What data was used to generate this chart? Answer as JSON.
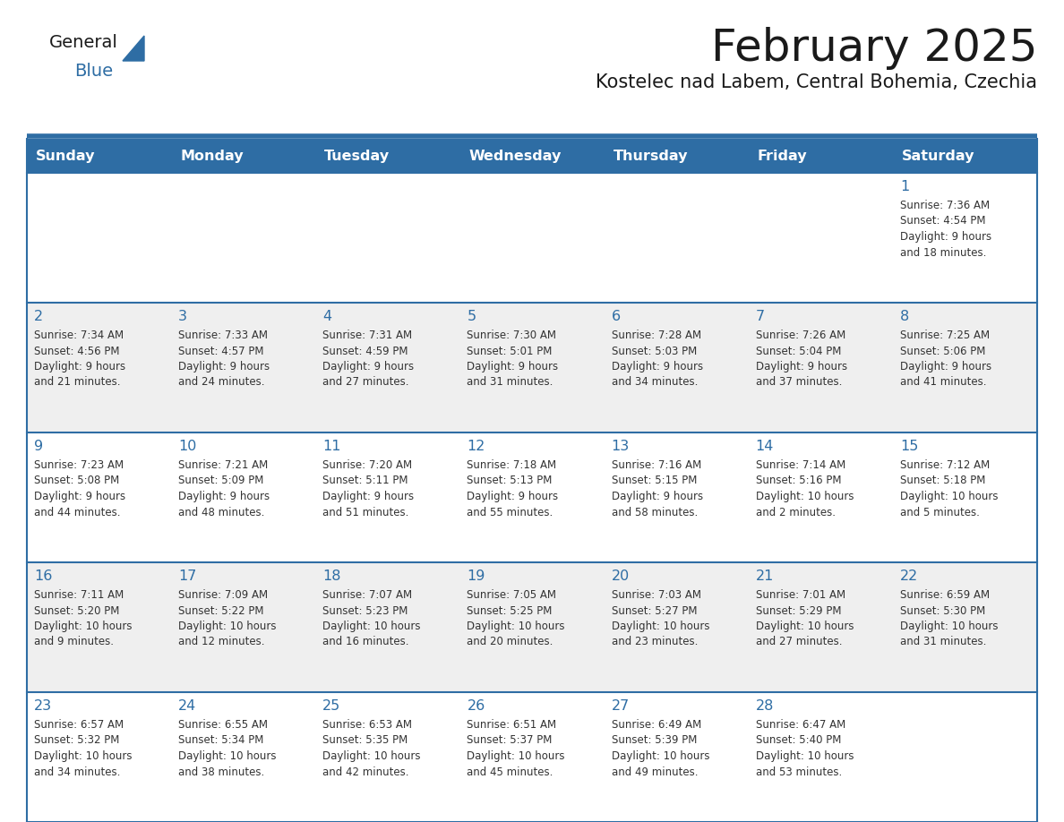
{
  "title": "February 2025",
  "subtitle": "Kostelec nad Labem, Central Bohemia, Czechia",
  "header_bg": "#2E6DA4",
  "header_text": "#FFFFFF",
  "row_bg_colors": [
    "#FFFFFF",
    "#EFEFEF",
    "#FFFFFF",
    "#EFEFEF",
    "#FFFFFF"
  ],
  "cell_border": "#2E6DA4",
  "day_text_color": "#2E6DA4",
  "info_text_color": "#333333",
  "days_of_week": [
    "Sunday",
    "Monday",
    "Tuesday",
    "Wednesday",
    "Thursday",
    "Friday",
    "Saturday"
  ],
  "weeks": [
    [
      {
        "day": "",
        "info": ""
      },
      {
        "day": "",
        "info": ""
      },
      {
        "day": "",
        "info": ""
      },
      {
        "day": "",
        "info": ""
      },
      {
        "day": "",
        "info": ""
      },
      {
        "day": "",
        "info": ""
      },
      {
        "day": "1",
        "info": "Sunrise: 7:36 AM\nSunset: 4:54 PM\nDaylight: 9 hours\nand 18 minutes."
      }
    ],
    [
      {
        "day": "2",
        "info": "Sunrise: 7:34 AM\nSunset: 4:56 PM\nDaylight: 9 hours\nand 21 minutes."
      },
      {
        "day": "3",
        "info": "Sunrise: 7:33 AM\nSunset: 4:57 PM\nDaylight: 9 hours\nand 24 minutes."
      },
      {
        "day": "4",
        "info": "Sunrise: 7:31 AM\nSunset: 4:59 PM\nDaylight: 9 hours\nand 27 minutes."
      },
      {
        "day": "5",
        "info": "Sunrise: 7:30 AM\nSunset: 5:01 PM\nDaylight: 9 hours\nand 31 minutes."
      },
      {
        "day": "6",
        "info": "Sunrise: 7:28 AM\nSunset: 5:03 PM\nDaylight: 9 hours\nand 34 minutes."
      },
      {
        "day": "7",
        "info": "Sunrise: 7:26 AM\nSunset: 5:04 PM\nDaylight: 9 hours\nand 37 minutes."
      },
      {
        "day": "8",
        "info": "Sunrise: 7:25 AM\nSunset: 5:06 PM\nDaylight: 9 hours\nand 41 minutes."
      }
    ],
    [
      {
        "day": "9",
        "info": "Sunrise: 7:23 AM\nSunset: 5:08 PM\nDaylight: 9 hours\nand 44 minutes."
      },
      {
        "day": "10",
        "info": "Sunrise: 7:21 AM\nSunset: 5:09 PM\nDaylight: 9 hours\nand 48 minutes."
      },
      {
        "day": "11",
        "info": "Sunrise: 7:20 AM\nSunset: 5:11 PM\nDaylight: 9 hours\nand 51 minutes."
      },
      {
        "day": "12",
        "info": "Sunrise: 7:18 AM\nSunset: 5:13 PM\nDaylight: 9 hours\nand 55 minutes."
      },
      {
        "day": "13",
        "info": "Sunrise: 7:16 AM\nSunset: 5:15 PM\nDaylight: 9 hours\nand 58 minutes."
      },
      {
        "day": "14",
        "info": "Sunrise: 7:14 AM\nSunset: 5:16 PM\nDaylight: 10 hours\nand 2 minutes."
      },
      {
        "day": "15",
        "info": "Sunrise: 7:12 AM\nSunset: 5:18 PM\nDaylight: 10 hours\nand 5 minutes."
      }
    ],
    [
      {
        "day": "16",
        "info": "Sunrise: 7:11 AM\nSunset: 5:20 PM\nDaylight: 10 hours\nand 9 minutes."
      },
      {
        "day": "17",
        "info": "Sunrise: 7:09 AM\nSunset: 5:22 PM\nDaylight: 10 hours\nand 12 minutes."
      },
      {
        "day": "18",
        "info": "Sunrise: 7:07 AM\nSunset: 5:23 PM\nDaylight: 10 hours\nand 16 minutes."
      },
      {
        "day": "19",
        "info": "Sunrise: 7:05 AM\nSunset: 5:25 PM\nDaylight: 10 hours\nand 20 minutes."
      },
      {
        "day": "20",
        "info": "Sunrise: 7:03 AM\nSunset: 5:27 PM\nDaylight: 10 hours\nand 23 minutes."
      },
      {
        "day": "21",
        "info": "Sunrise: 7:01 AM\nSunset: 5:29 PM\nDaylight: 10 hours\nand 27 minutes."
      },
      {
        "day": "22",
        "info": "Sunrise: 6:59 AM\nSunset: 5:30 PM\nDaylight: 10 hours\nand 31 minutes."
      }
    ],
    [
      {
        "day": "23",
        "info": "Sunrise: 6:57 AM\nSunset: 5:32 PM\nDaylight: 10 hours\nand 34 minutes."
      },
      {
        "day": "24",
        "info": "Sunrise: 6:55 AM\nSunset: 5:34 PM\nDaylight: 10 hours\nand 38 minutes."
      },
      {
        "day": "25",
        "info": "Sunrise: 6:53 AM\nSunset: 5:35 PM\nDaylight: 10 hours\nand 42 minutes."
      },
      {
        "day": "26",
        "info": "Sunrise: 6:51 AM\nSunset: 5:37 PM\nDaylight: 10 hours\nand 45 minutes."
      },
      {
        "day": "27",
        "info": "Sunrise: 6:49 AM\nSunset: 5:39 PM\nDaylight: 10 hours\nand 49 minutes."
      },
      {
        "day": "28",
        "info": "Sunrise: 6:47 AM\nSunset: 5:40 PM\nDaylight: 10 hours\nand 53 minutes."
      },
      {
        "day": "",
        "info": ""
      }
    ]
  ]
}
